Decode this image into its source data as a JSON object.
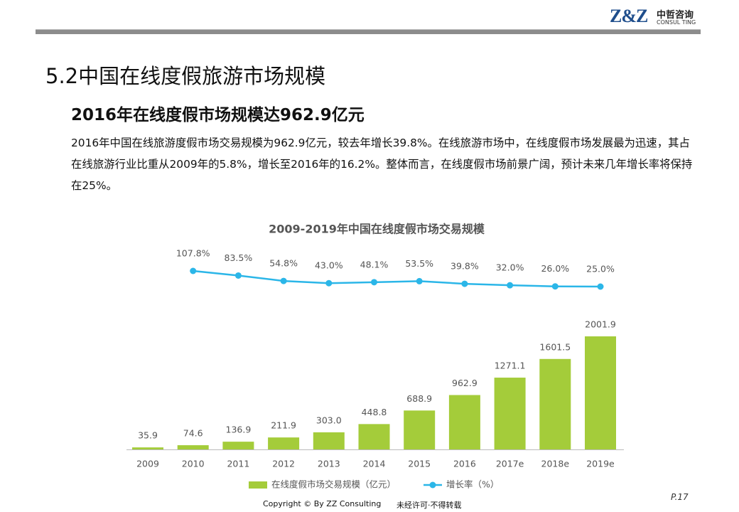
{
  "header": {
    "logo": "Z&Z",
    "brand": "中哲咨询",
    "brand_en": "CONSUL TING"
  },
  "title": "5.2中国在线度假旅游市场规模",
  "subtitle": "2016年在线度假市场规模达962.9亿元",
  "body": "2016年中国在线旅游度假市场交易规模为962.9亿元，较去年增长39.8%。在线旅游市场中，在线度假市场发展最为迅速，其占在线旅游行业比重从2009年的5.8%，增长至2016年的16.2%。整体而言，在线度假市场前景广阔，预计未来几年增长率将保持在25%。",
  "chart_data": {
    "type": "bar",
    "title": "2009-2019年中国在线度假市场交易规模",
    "categories": [
      "2009",
      "2010",
      "2011",
      "2012",
      "2013",
      "2014",
      "2015",
      "2016",
      "2017e",
      "2018e",
      "2019e"
    ],
    "series": [
      {
        "name": "在线度假市场交易规模（亿元）",
        "color": "#a4cc3a",
        "type": "bar",
        "values": [
          35.9,
          74.6,
          136.9,
          211.9,
          303.0,
          448.8,
          688.9,
          962.9,
          1271.1,
          1601.5,
          2001.9
        ],
        "value_labels": [
          "35.9",
          "74.6",
          "136.9",
          "211.9",
          "303.0",
          "448.8",
          "688.9",
          "962.9",
          "1271.1",
          "1601.5",
          "2001.9"
        ]
      },
      {
        "name": "增长率（%）",
        "color": "#2bb6e8",
        "type": "line",
        "values": [
          null,
          107.8,
          83.5,
          54.8,
          43.0,
          48.1,
          53.5,
          39.8,
          32.0,
          26.0,
          25.0
        ],
        "value_labels": [
          null,
          "107.8%",
          "83.5%",
          "54.8%",
          "43.0%",
          "48.1%",
          "53.5%",
          "39.8%",
          "32.0%",
          "26.0%",
          "25.0%"
        ]
      }
    ]
  },
  "footer": {
    "copyright": "Copyright © By  ZZ Consulting",
    "notice": "未经许可·不得转载",
    "page": "P.17"
  }
}
